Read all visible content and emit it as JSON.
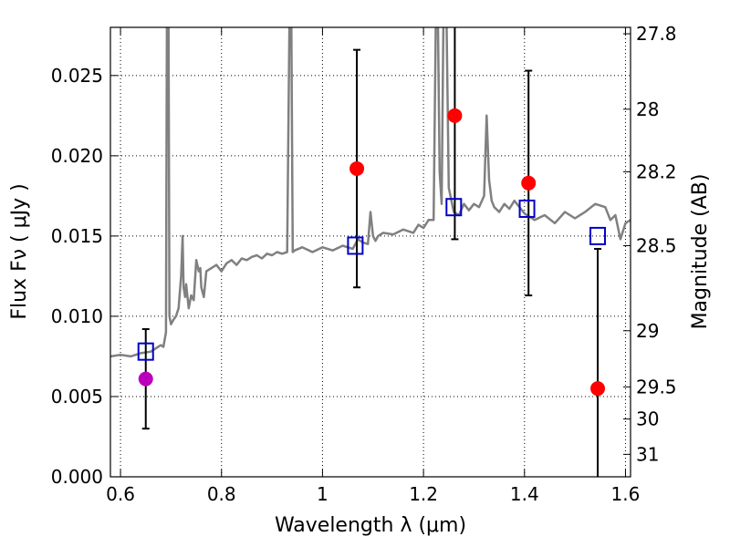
{
  "chart_data": {
    "type": "scatter",
    "xlabel": "Wavelength  λ (μm)",
    "ylabel": "Flux  Fν  ( μJy )",
    "ylabel_right": "Magnitude (AB)",
    "xlim": [
      0.58,
      1.61
    ],
    "ylim": [
      0.0,
      0.028
    ],
    "grid": true,
    "x_ticks": [
      0.6,
      0.8,
      1.0,
      1.2,
      1.4,
      1.6
    ],
    "x_tick_labels": [
      "0.6",
      "0.8",
      "1",
      "1.2",
      "1.4",
      "1.6"
    ],
    "y_ticks": [
      0.0,
      0.005,
      0.01,
      0.015,
      0.02,
      0.025
    ],
    "y_tick_labels": [
      "0.000",
      "0.005",
      "0.010",
      "0.015",
      "0.020",
      "0.025"
    ],
    "right_ticks": [
      {
        "label": "27.8",
        "flux": 0.0276
      },
      {
        "label": "28",
        "flux": 0.0229
      },
      {
        "label": "28.2",
        "flux": 0.019
      },
      {
        "label": "28.5",
        "flux": 0.0144
      },
      {
        "label": "29",
        "flux": 0.0091
      },
      {
        "label": "29.5",
        "flux": 0.0056
      },
      {
        "label": "30",
        "flux": 0.0036
      },
      {
        "label": "31",
        "flux": 0.0014
      }
    ],
    "series": [
      {
        "marker": "line",
        "color": "#808080",
        "x": [
          0.58,
          0.6,
          0.62,
          0.64,
          0.66,
          0.67,
          0.68,
          0.685,
          0.69,
          0.692,
          0.695,
          0.697,
          0.7,
          0.705,
          0.71,
          0.715,
          0.72,
          0.723,
          0.725,
          0.728,
          0.73,
          0.735,
          0.74,
          0.745,
          0.75,
          0.755,
          0.758,
          0.76,
          0.765,
          0.77,
          0.78,
          0.79,
          0.8,
          0.81,
          0.82,
          0.83,
          0.84,
          0.85,
          0.86,
          0.87,
          0.88,
          0.89,
          0.9,
          0.91,
          0.92,
          0.93,
          0.935,
          0.938,
          0.941,
          0.945,
          0.96,
          0.98,
          1.0,
          1.02,
          1.04,
          1.06,
          1.07,
          1.08,
          1.09,
          1.095,
          1.1,
          1.105,
          1.11,
          1.12,
          1.14,
          1.16,
          1.18,
          1.19,
          1.2,
          1.21,
          1.22,
          1.225,
          1.228,
          1.232,
          1.236,
          1.24,
          1.245,
          1.25,
          1.26,
          1.27,
          1.28,
          1.29,
          1.3,
          1.31,
          1.32,
          1.325,
          1.33,
          1.335,
          1.34,
          1.35,
          1.36,
          1.37,
          1.38,
          1.39,
          1.4,
          1.42,
          1.44,
          1.46,
          1.48,
          1.5,
          1.52,
          1.54,
          1.56,
          1.57,
          1.58,
          1.59,
          1.6,
          1.61
        ],
        "y": [
          0.0075,
          0.0076,
          0.0075,
          0.0077,
          0.0078,
          0.008,
          0.0082,
          0.0081,
          0.009,
          0.03,
          0.03,
          0.01,
          0.0095,
          0.0098,
          0.01,
          0.0105,
          0.0125,
          0.015,
          0.0118,
          0.0112,
          0.012,
          0.0105,
          0.0113,
          0.011,
          0.0135,
          0.0128,
          0.013,
          0.0118,
          0.0112,
          0.0128,
          0.013,
          0.0132,
          0.0128,
          0.0133,
          0.0135,
          0.0132,
          0.0136,
          0.0135,
          0.0137,
          0.0138,
          0.0136,
          0.0139,
          0.0138,
          0.014,
          0.0139,
          0.014,
          0.03,
          0.03,
          0.014,
          0.0141,
          0.0143,
          0.014,
          0.0143,
          0.0141,
          0.0144,
          0.0142,
          0.0148,
          0.0146,
          0.0145,
          0.0165,
          0.015,
          0.0147,
          0.015,
          0.0152,
          0.0151,
          0.0154,
          0.0152,
          0.0157,
          0.0155,
          0.016,
          0.016,
          0.03,
          0.03,
          0.019,
          0.017,
          0.03,
          0.03,
          0.018,
          0.0165,
          0.0163,
          0.017,
          0.0166,
          0.017,
          0.0168,
          0.0175,
          0.0225,
          0.0185,
          0.0172,
          0.0168,
          0.0165,
          0.017,
          0.0167,
          0.0172,
          0.0168,
          0.0164,
          0.016,
          0.0163,
          0.0158,
          0.0165,
          0.0161,
          0.0165,
          0.017,
          0.0168,
          0.016,
          0.0163,
          0.0148,
          0.0158,
          0.016
        ]
      },
      {
        "marker": "open-square",
        "color": "#0000cc",
        "x": [
          0.65,
          1.065,
          1.26,
          1.405,
          1.545
        ],
        "y": [
          0.0078,
          0.0144,
          0.0168,
          0.0167,
          0.015
        ]
      },
      {
        "marker": "filled-circle",
        "color": "#ff0000",
        "x": [
          1.068,
          1.262,
          1.408,
          1.545
        ],
        "y": [
          0.0192,
          0.0225,
          0.0183,
          0.0055
        ],
        "yerr": [
          0.0074,
          0.0077,
          0.007,
          0.0087
        ]
      },
      {
        "marker": "filled-circle",
        "color": "#bb00bb",
        "x": [
          0.65
        ],
        "y": [
          0.0061
        ],
        "yerr": [
          0.0031
        ]
      }
    ]
  }
}
